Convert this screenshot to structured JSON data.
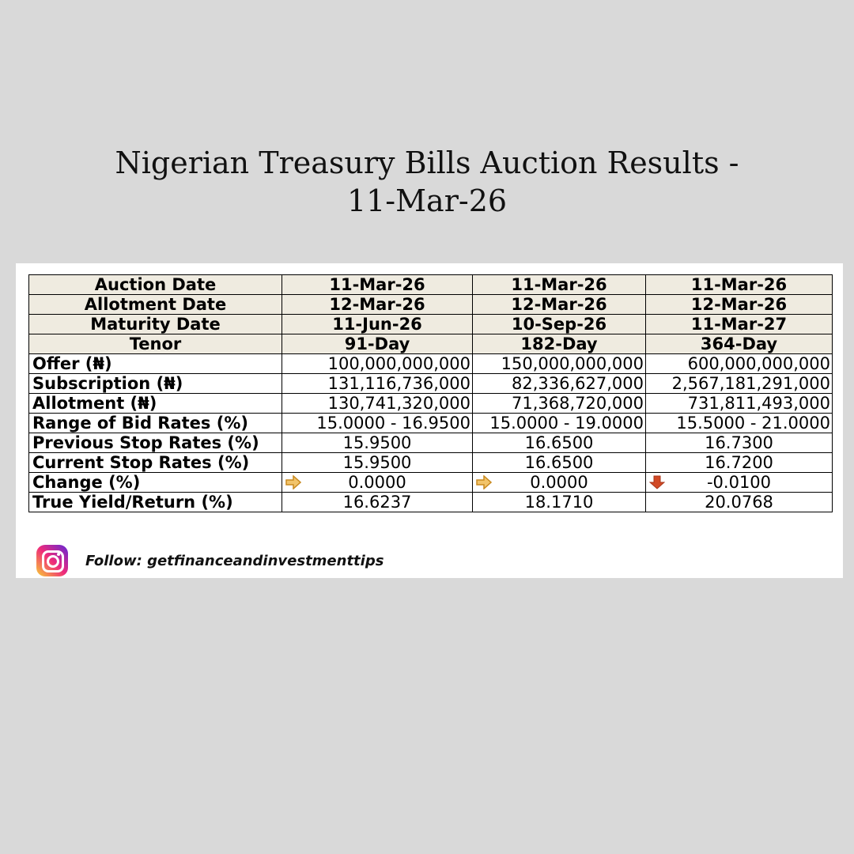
{
  "title": {
    "line1": "Nigerian Treasury Bills Auction Results -",
    "line2": "11-Mar-26"
  },
  "table": {
    "header_rows": [
      {
        "label": "Auction Date",
        "values": [
          "11-Mar-26",
          "11-Mar-26",
          "11-Mar-26"
        ]
      },
      {
        "label": "Allotment Date",
        "values": [
          "12-Mar-26",
          "12-Mar-26",
          "12-Mar-26"
        ]
      },
      {
        "label": "Maturity Date",
        "values": [
          "11-Jun-26",
          "10-Sep-26",
          "11-Mar-27"
        ]
      },
      {
        "label": "Tenor",
        "values": [
          "91-Day",
          "182-Day",
          "364-Day"
        ]
      }
    ],
    "rows": [
      {
        "label": "Offer (₦)",
        "values": [
          "100,000,000,000",
          "150,000,000,000",
          "600,000,000,000"
        ]
      },
      {
        "label": "Subscription (₦)",
        "values": [
          "131,116,736,000",
          "82,336,627,000",
          "2,567,181,291,000"
        ]
      },
      {
        "label": "Allotment (₦)",
        "values": [
          "130,741,320,000",
          "71,368,720,000",
          "731,811,493,000"
        ]
      },
      {
        "label": "Range of Bid Rates (%)",
        "values": [
          "15.0000 - 16.9500",
          "15.0000 - 19.0000",
          "15.5000 - 21.0000"
        ]
      },
      {
        "label": "Previous Stop Rates (%)",
        "values": [
          "15.9500",
          "16.6500",
          "16.7300"
        ]
      },
      {
        "label": "Current Stop Rates (%)",
        "values": [
          "15.9500",
          "16.6500",
          "16.7200"
        ]
      },
      {
        "label": "Change (%)",
        "values": [
          "0.0000",
          "0.0000",
          "-0.0100"
        ],
        "icons": [
          "right-arrow-icon",
          "right-arrow-icon",
          "down-arrow-icon"
        ]
      },
      {
        "label": "True Yield/Return (%)",
        "values": [
          "16.6237",
          "18.1710",
          "20.0768"
        ]
      }
    ]
  },
  "colors": {
    "background": "#d9d9d9",
    "header_fill": "#efebe0",
    "arrow_flat": "#e6a43a",
    "arrow_down": "#d24a26"
  },
  "footer": {
    "icon": "instagram-icon",
    "text": "Follow: getfinanceandinvestmenttips"
  }
}
